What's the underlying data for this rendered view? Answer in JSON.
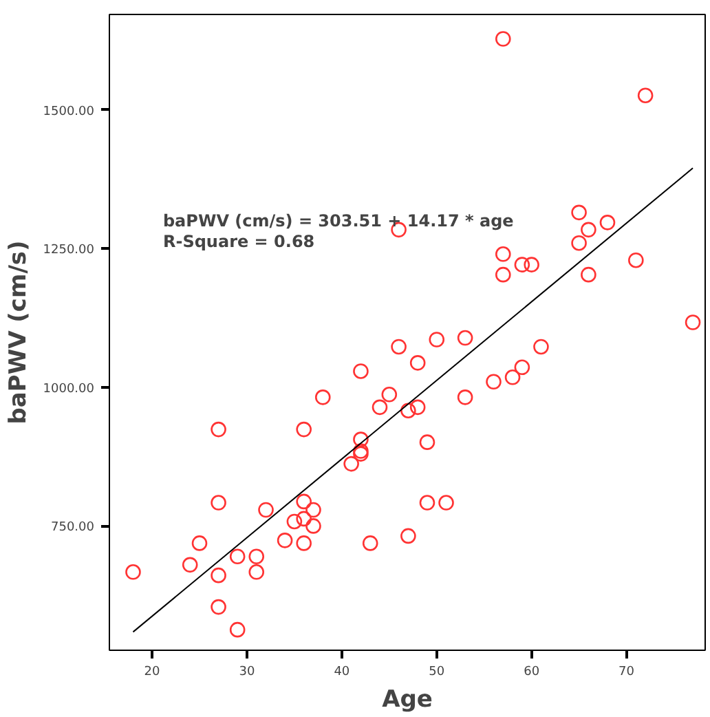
{
  "chart_data": {
    "type": "scatter",
    "xlabel": "Age",
    "ylabel": "baPWV (cm/s)",
    "xlim": [
      15.5,
      78.3
    ],
    "ylim": [
      526,
      1672
    ],
    "xticks": [
      20,
      30,
      40,
      50,
      60,
      70
    ],
    "yticks": [
      {
        "value": 750,
        "label": "750.00"
      },
      {
        "value": 1000,
        "label": "1000.00"
      },
      {
        "value": 1250,
        "label": "1250.00"
      },
      {
        "value": 1500,
        "label": "1500.00"
      }
    ],
    "grid": false,
    "annotations": [
      "baPWV (cm/s) = 303.51 + 14.17 * age",
      "R-Square = 0.68"
    ],
    "series": [
      {
        "marker": "circle",
        "color": "#ff3333",
        "x": [
          18,
          24,
          25,
          27,
          27,
          27,
          27,
          29,
          29,
          31,
          31,
          32,
          34,
          35,
          36,
          36,
          36,
          36,
          37,
          37,
          38,
          41,
          42,
          42,
          42,
          42,
          43,
          44,
          45,
          46,
          47,
          47,
          48,
          48,
          49,
          49,
          50,
          51,
          53,
          53,
          56,
          58,
          59,
          61,
          57,
          72,
          46,
          65,
          66,
          68,
          65,
          57,
          57,
          59,
          60,
          66,
          71,
          77
        ],
        "values": [
          667,
          680,
          719,
          924,
          792,
          661,
          604,
          695,
          563,
          695,
          667,
          779,
          724,
          758,
          924,
          794,
          763,
          719,
          779,
          750,
          982,
          862,
          906,
          885,
          880,
          1029,
          719,
          964,
          987,
          1073,
          958,
          732,
          1044,
          964,
          901,
          792,
          1086,
          792,
          1089,
          982,
          1010,
          1018,
          1036,
          1073,
          1628,
          1526,
          1284,
          1315,
          1284,
          1297,
          1260,
          1240,
          1203,
          1221,
          1221,
          1203,
          1229,
          1117
        ]
      },
      {
        "type": "line",
        "marker": "none",
        "color": "#000000",
        "x": [
          18,
          77
        ],
        "values": [
          559,
          1395
        ]
      }
    ]
  }
}
